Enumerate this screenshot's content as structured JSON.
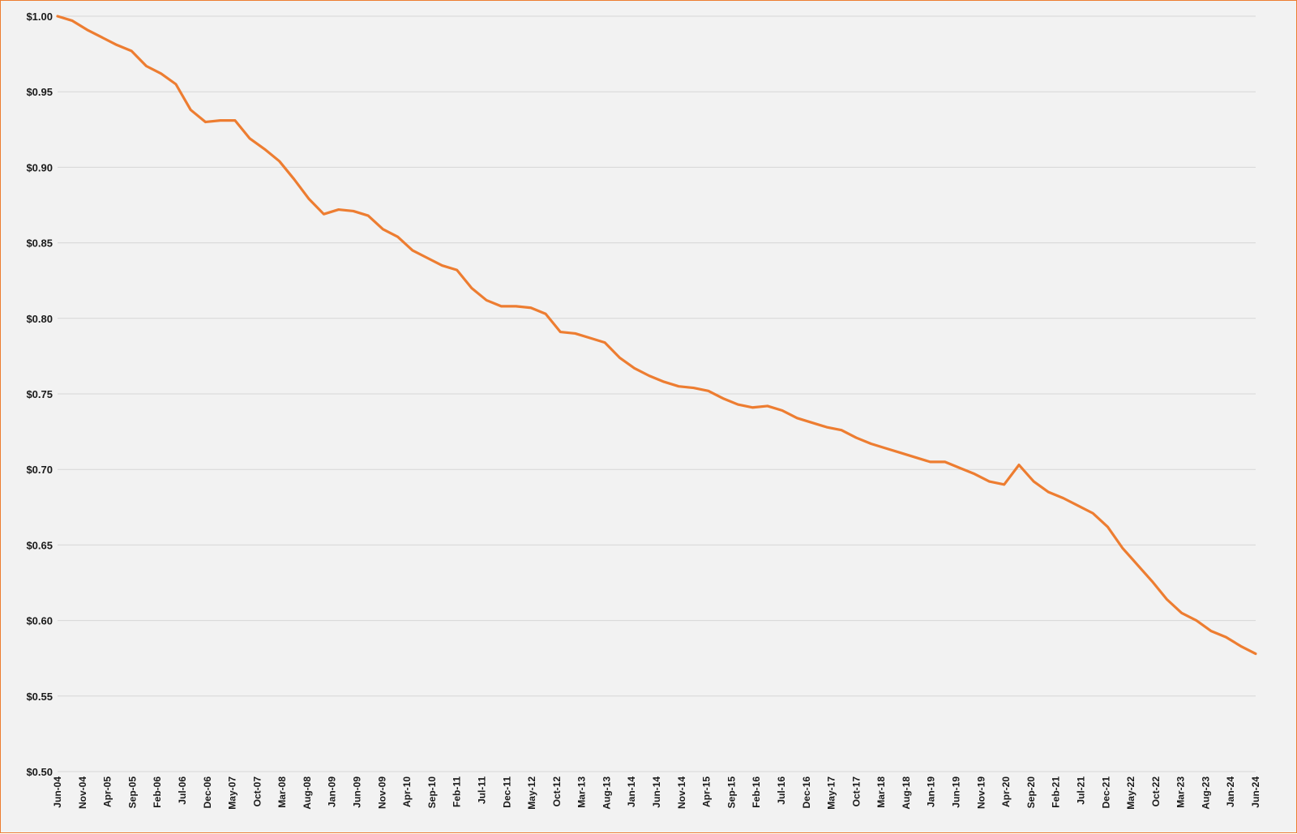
{
  "chart_data": {
    "type": "line",
    "title": "",
    "xlabel": "",
    "ylabel": "",
    "ylim": [
      0.5,
      1.0
    ],
    "y_ticks": [
      0.5,
      0.55,
      0.6,
      0.65,
      0.7,
      0.75,
      0.8,
      0.85,
      0.9,
      0.95,
      1.0
    ],
    "y_tick_labels": [
      "$0.50",
      "$0.55",
      "$0.60",
      "$0.65",
      "$0.70",
      "$0.75",
      "$0.80",
      "$0.85",
      "$0.90",
      "$0.95",
      "$1.00"
    ],
    "x_tick_labels": [
      "Jun-04",
      "Nov-04",
      "Apr-05",
      "Sep-05",
      "Feb-06",
      "Jul-06",
      "Dec-06",
      "May-07",
      "Oct-07",
      "Mar-08",
      "Aug-08",
      "Jan-09",
      "Jun-09",
      "Nov-09",
      "Apr-10",
      "Sep-10",
      "Feb-11",
      "Jul-11",
      "Dec-11",
      "May-12",
      "Oct-12",
      "Mar-13",
      "Aug-13",
      "Jan-14",
      "Jun-14",
      "Nov-14",
      "Apr-15",
      "Sep-15",
      "Feb-16",
      "Jul-16",
      "Dec-16",
      "May-17",
      "Oct-17",
      "Mar-18",
      "Aug-18",
      "Jan-19",
      "Jun-19",
      "Nov-19",
      "Apr-20",
      "Sep-20",
      "Feb-21",
      "Jul-21",
      "Dec-21",
      "May-22",
      "Oct-22",
      "Mar-23",
      "Aug-23",
      "Jan-24",
      "Jun-24"
    ],
    "x_tick_months": [
      0,
      5,
      10,
      15,
      20,
      25,
      30,
      35,
      40,
      45,
      50,
      55,
      60,
      65,
      70,
      75,
      80,
      85,
      90,
      95,
      100,
      105,
      110,
      115,
      120,
      125,
      130,
      135,
      140,
      145,
      150,
      155,
      160,
      165,
      170,
      175,
      180,
      185,
      190,
      195,
      200,
      205,
      210,
      215,
      220,
      225,
      230,
      235,
      240
    ],
    "grid": true,
    "legend": "none",
    "series": [
      {
        "color": "#ED7D31",
        "points": [
          [
            0,
            1.0
          ],
          [
            2,
            0.997
          ],
          [
            4,
            0.991
          ],
          [
            6,
            0.986
          ],
          [
            8,
            0.981
          ],
          [
            10,
            0.977
          ],
          [
            12,
            0.967
          ],
          [
            14,
            0.962
          ],
          [
            16,
            0.955
          ],
          [
            18,
            0.938
          ],
          [
            20,
            0.93
          ],
          [
            22,
            0.931
          ],
          [
            24,
            0.931
          ],
          [
            26,
            0.919
          ],
          [
            28,
            0.912
          ],
          [
            30,
            0.904
          ],
          [
            32,
            0.892
          ],
          [
            34,
            0.879
          ],
          [
            36,
            0.869
          ],
          [
            38,
            0.872
          ],
          [
            40,
            0.871
          ],
          [
            42,
            0.868
          ],
          [
            44,
            0.859
          ],
          [
            46,
            0.854
          ],
          [
            48,
            0.845
          ],
          [
            50,
            0.84
          ],
          [
            52,
            0.835
          ],
          [
            54,
            0.832
          ],
          [
            56,
            0.82
          ],
          [
            58,
            0.812
          ],
          [
            60,
            0.808
          ],
          [
            62,
            0.808
          ],
          [
            64,
            0.807
          ],
          [
            66,
            0.803
          ],
          [
            68,
            0.791
          ],
          [
            70,
            0.79
          ],
          [
            72,
            0.787
          ],
          [
            74,
            0.784
          ],
          [
            76,
            0.774
          ],
          [
            78,
            0.767
          ],
          [
            80,
            0.762
          ],
          [
            82,
            0.758
          ],
          [
            84,
            0.755
          ],
          [
            86,
            0.754
          ],
          [
            88,
            0.752
          ],
          [
            90,
            0.747
          ],
          [
            92,
            0.743
          ],
          [
            94,
            0.741
          ],
          [
            96,
            0.742
          ],
          [
            98,
            0.739
          ],
          [
            100,
            0.734
          ],
          [
            102,
            0.731
          ],
          [
            104,
            0.728
          ],
          [
            106,
            0.726
          ],
          [
            108,
            0.721
          ],
          [
            110,
            0.717
          ],
          [
            112,
            0.714
          ],
          [
            114,
            0.711
          ],
          [
            116,
            0.708
          ],
          [
            118,
            0.705
          ],
          [
            120,
            0.705
          ],
          [
            122,
            0.701
          ],
          [
            124,
            0.697
          ],
          [
            126,
            0.692
          ],
          [
            128,
            0.69
          ],
          [
            130,
            0.703
          ],
          [
            132,
            0.692
          ],
          [
            134,
            0.685
          ],
          [
            136,
            0.681
          ],
          [
            138,
            0.676
          ],
          [
            140,
            0.671
          ],
          [
            142,
            0.662
          ],
          [
            144,
            0.648
          ],
          [
            146,
            0.637
          ],
          [
            148,
            0.626
          ],
          [
            150,
            0.614
          ],
          [
            152,
            0.605
          ],
          [
            154,
            0.6
          ],
          [
            156,
            0.593
          ],
          [
            158,
            0.589
          ],
          [
            160,
            0.583
          ],
          [
            162,
            0.578
          ]
        ],
        "x_months_per_point": 1.4814
      }
    ]
  }
}
